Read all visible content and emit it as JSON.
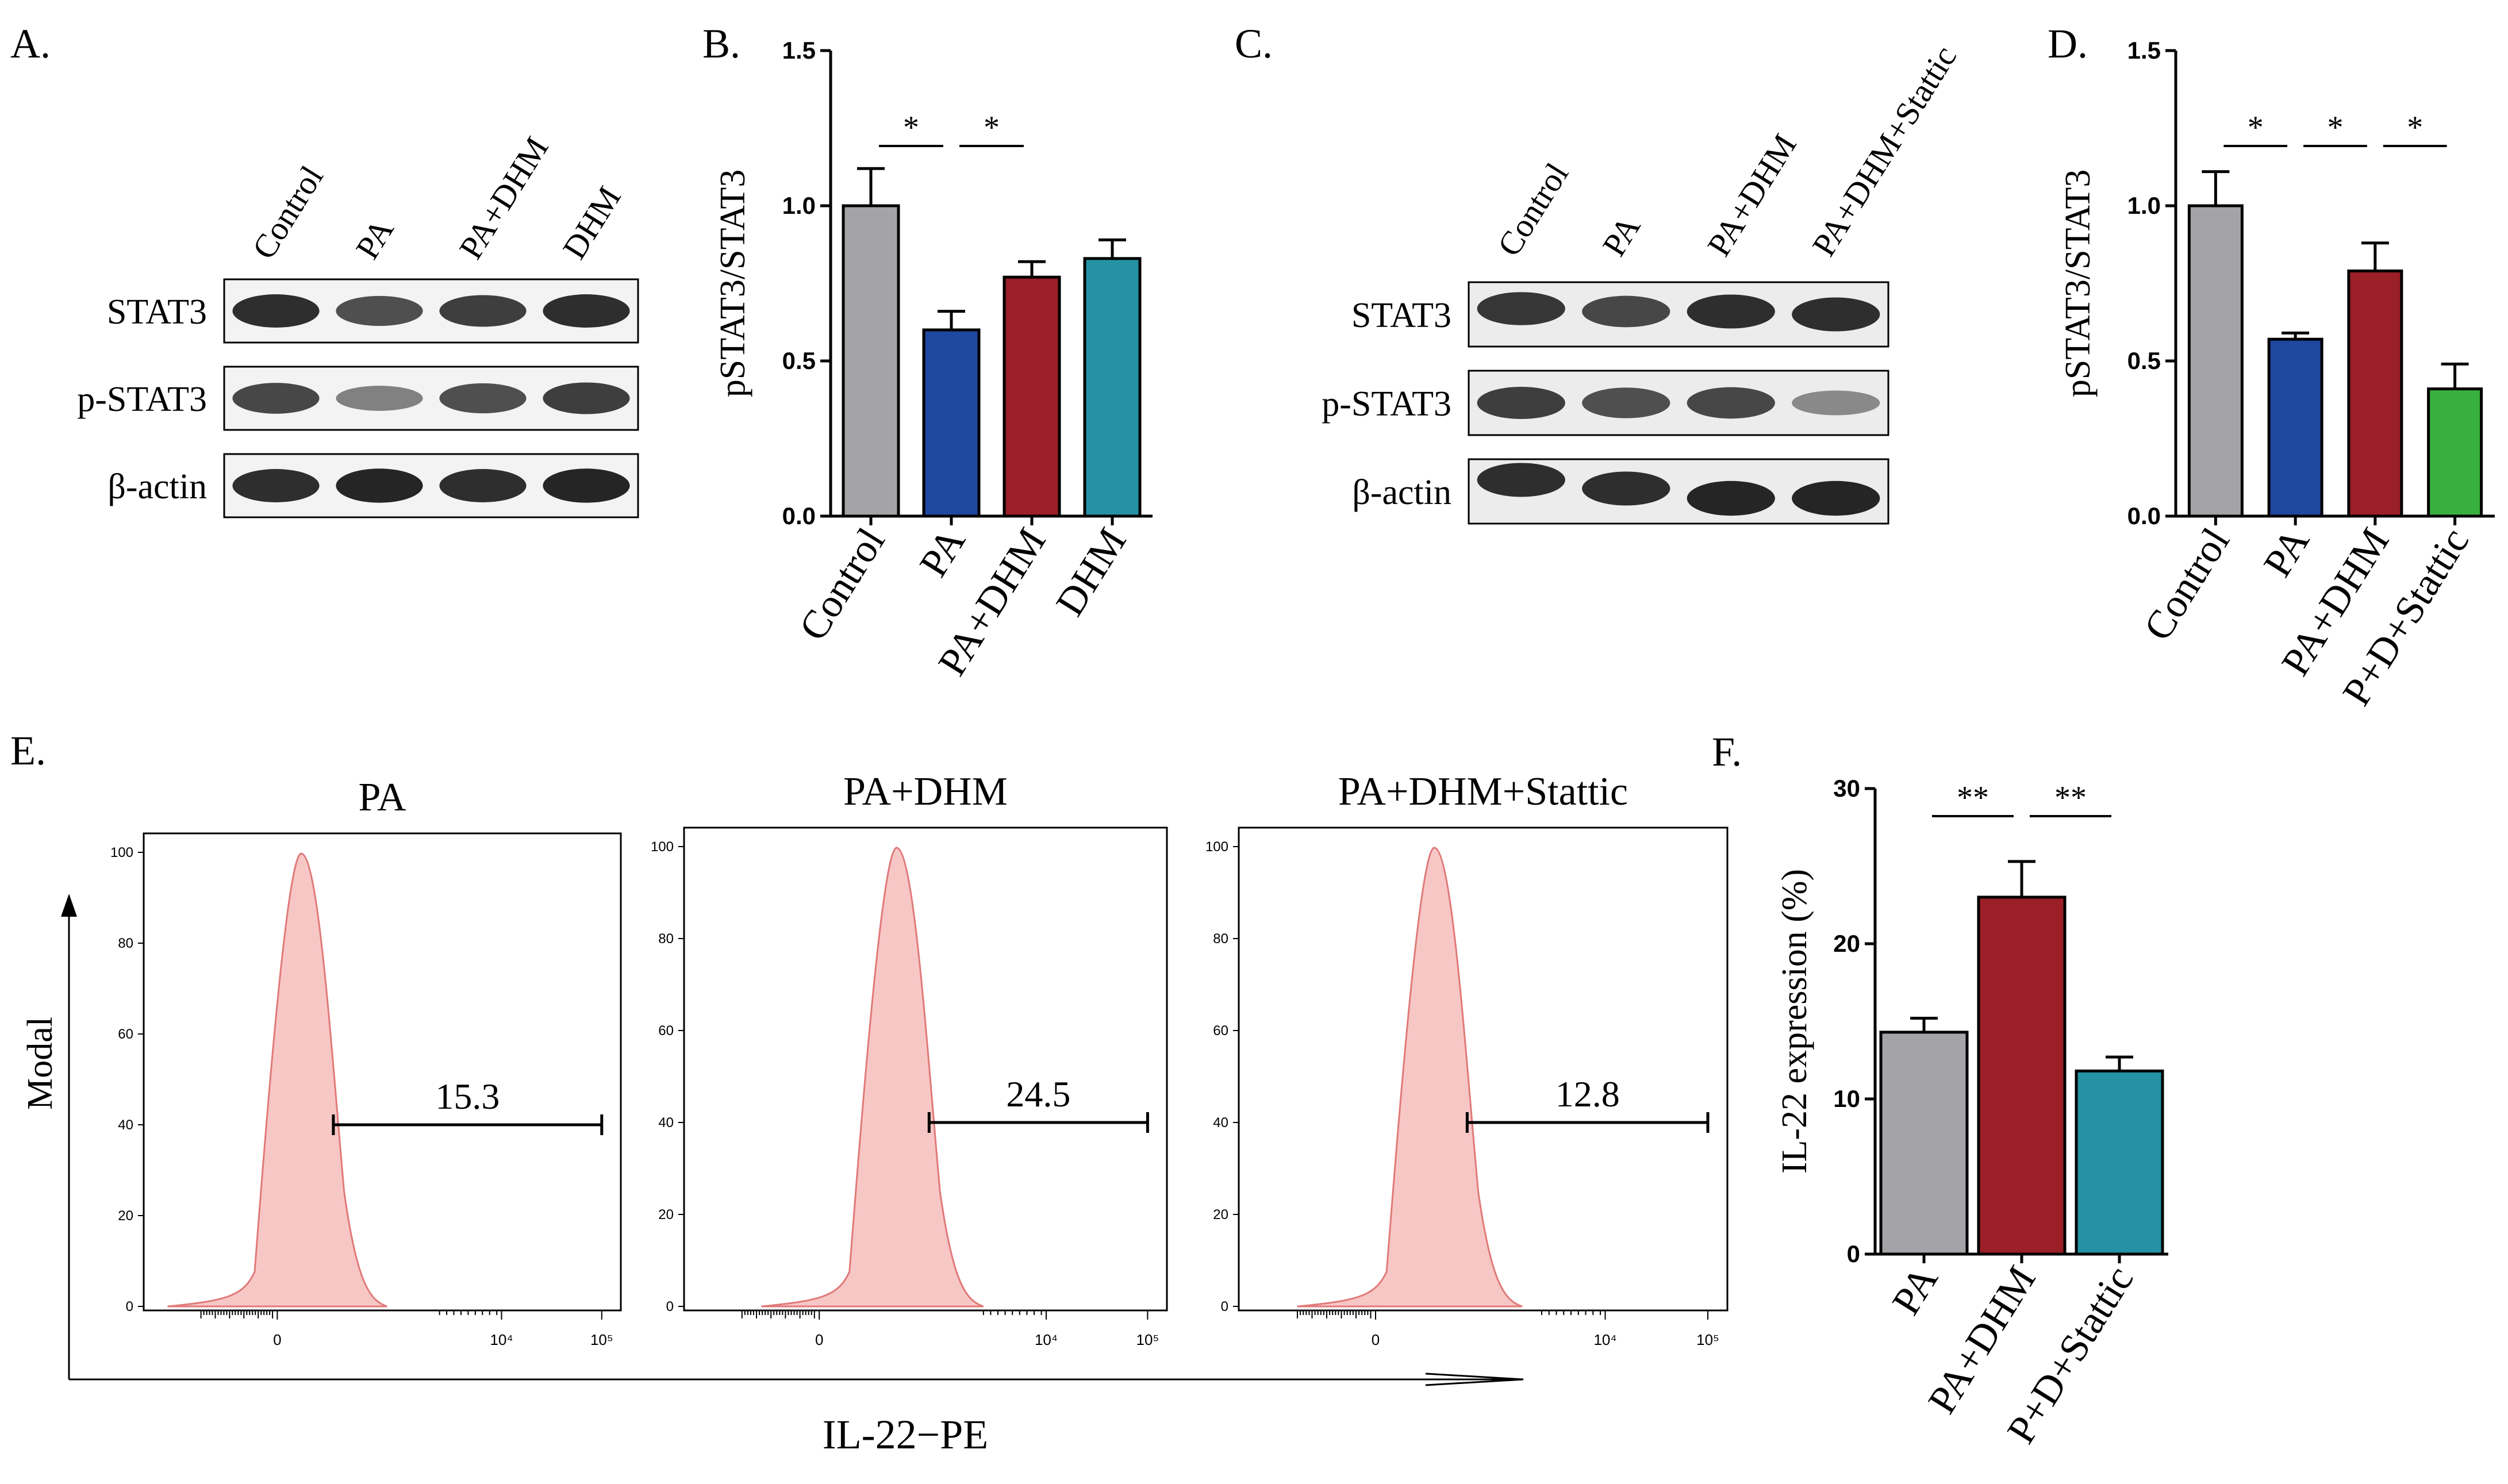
{
  "panels": {
    "A": {
      "label": "A.",
      "lanes": [
        "Control",
        "PA",
        "PA+DHM",
        "DHM"
      ],
      "blots": [
        {
          "name": "STAT3",
          "intensity": [
            0.95,
            0.75,
            0.85,
            0.95
          ]
        },
        {
          "name": "p-STAT3",
          "intensity": [
            0.8,
            0.45,
            0.75,
            0.85
          ]
        },
        {
          "name": "β-actin",
          "intensity": [
            0.95,
            1.0,
            0.95,
            1.0
          ]
        }
      ]
    },
    "C": {
      "label": "C.",
      "lanes": [
        "Control",
        "PA",
        "PA+DHM",
        "PA+DHM+Stattic"
      ],
      "blots": [
        {
          "name": "STAT3",
          "intensity": [
            0.9,
            0.8,
            0.95,
            0.95
          ]
        },
        {
          "name": "p-STAT3",
          "intensity": [
            0.85,
            0.75,
            0.8,
            0.4
          ]
        },
        {
          "name": "β-actin",
          "intensity": [
            0.95,
            0.95,
            1.0,
            1.0
          ]
        }
      ]
    },
    "E": {
      "label": "E.",
      "ylabel": "Modal",
      "xlabel": "IL-22−PE",
      "yticks": [
        "0",
        "20",
        "40",
        "60",
        "80",
        "100"
      ],
      "xticks": [
        "0",
        "10⁴",
        "10⁵"
      ],
      "histograms": [
        {
          "title": "PA",
          "gate_value": "15.3",
          "peak_pos": 0.33
        },
        {
          "title": "PA+DHM",
          "gate_value": "24.5",
          "peak_pos": 0.44
        },
        {
          "title": "PA+DHM+Stattic",
          "gate_value": "12.8",
          "peak_pos": 0.4
        }
      ]
    }
  },
  "chart_data": [
    {
      "panel": "B.",
      "type": "bar",
      "categories": [
        "Control",
        "PA",
        "PA+DHM",
        "DHM"
      ],
      "values": [
        1.0,
        0.6,
        0.77,
        0.83
      ],
      "errors": [
        0.12,
        0.06,
        0.05,
        0.06
      ],
      "colors": [
        "#a3a3a8",
        "#1f47a0",
        "#9a1f27",
        "#2592a3"
      ],
      "ylabel": "pSTAT3/STAT3",
      "ylim": [
        0,
        1.5
      ],
      "yticks": [
        "0.0",
        "0.5",
        "1.0",
        "1.5"
      ],
      "significance": [
        {
          "from": 0,
          "to": 1,
          "label": "*"
        },
        {
          "from": 1,
          "to": 2,
          "label": "*"
        }
      ]
    },
    {
      "panel": "D.",
      "type": "bar",
      "categories": [
        "Control",
        "PA",
        "PA+DHM",
        "P+D+Stattic"
      ],
      "values": [
        1.0,
        0.57,
        0.79,
        0.41
      ],
      "errors": [
        0.11,
        0.02,
        0.09,
        0.08
      ],
      "colors": [
        "#a3a3a8",
        "#1f47a0",
        "#9a1f27",
        "#37b040"
      ],
      "ylabel": "pSTAT3/STAT3",
      "ylim": [
        0,
        1.5
      ],
      "yticks": [
        "0.0",
        "0.5",
        "1.0",
        "1.5"
      ],
      "significance": [
        {
          "from": 0,
          "to": 1,
          "label": "*"
        },
        {
          "from": 1,
          "to": 2,
          "label": "*"
        },
        {
          "from": 2,
          "to": 3,
          "label": "*"
        }
      ]
    },
    {
      "panel": "F.",
      "type": "bar",
      "categories": [
        "PA",
        "PA+DHM",
        "P+D+Stattic"
      ],
      "values": [
        14.3,
        23.0,
        11.8
      ],
      "errors": [
        0.9,
        2.3,
        0.9
      ],
      "colors": [
        "#a3a3a8",
        "#9a1f27",
        "#2592a3"
      ],
      "ylabel": "IL-22 expression (%)",
      "ylim": [
        0,
        30
      ],
      "yticks": [
        "0",
        "10",
        "20",
        "30"
      ],
      "significance": [
        {
          "from": 0,
          "to": 1,
          "label": "**"
        },
        {
          "from": 1,
          "to": 2,
          "label": "**"
        }
      ]
    }
  ]
}
